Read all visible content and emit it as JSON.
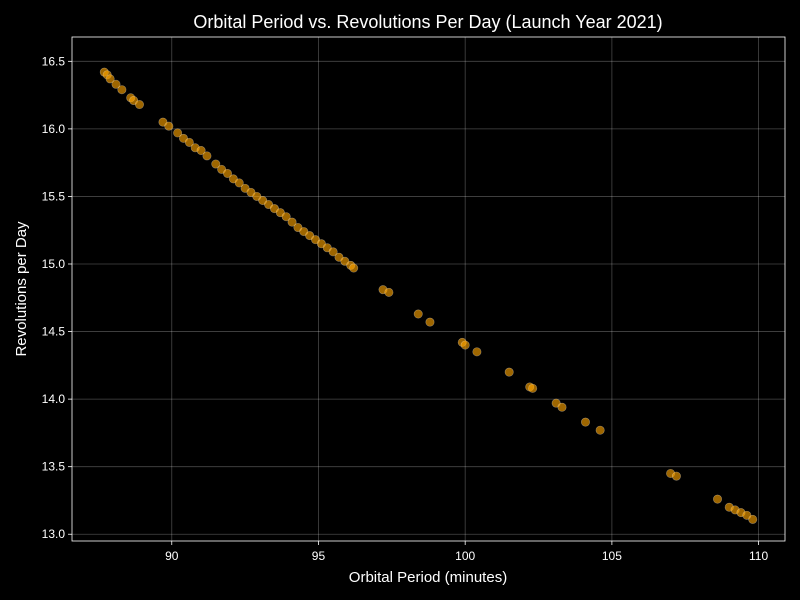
{
  "chart_data": {
    "type": "scatter",
    "title": "Orbital Period vs. Revolutions Per Day (Launch Year 2021)",
    "xlabel": "Orbital Period (minutes)",
    "ylabel": "Revolutions per Day",
    "xlim": [
      86.6,
      110.9
    ],
    "ylim": [
      12.95,
      16.68
    ],
    "xticks": [
      90,
      95,
      100,
      105,
      110
    ],
    "yticks": [
      13.0,
      13.5,
      14.0,
      14.5,
      15.0,
      15.5,
      16.0,
      16.5
    ],
    "xtick_labels": [
      "90",
      "95",
      "100",
      "105",
      "110"
    ],
    "ytick_labels": [
      "13.0",
      "13.5",
      "14.0",
      "14.5",
      "15.0",
      "15.5",
      "16.0",
      "16.5"
    ],
    "grid": true,
    "marker_color": "#FFA500",
    "marker_edge_color": "#ffffff",
    "background_color": "#000000",
    "x": [
      87.7,
      87.8,
      87.9,
      88.1,
      88.3,
      88.6,
      88.7,
      88.9,
      89.7,
      89.9,
      90.2,
      90.4,
      90.6,
      90.8,
      91.0,
      91.2,
      91.5,
      91.7,
      91.9,
      92.1,
      92.3,
      92.5,
      92.7,
      92.9,
      93.1,
      93.3,
      93.5,
      93.7,
      93.9,
      94.1,
      94.3,
      94.5,
      94.7,
      94.9,
      95.1,
      95.3,
      95.5,
      95.7,
      95.9,
      96.1,
      96.2,
      97.2,
      97.4,
      98.4,
      98.8,
      99.9,
      100.0,
      100.4,
      101.5,
      102.2,
      102.3,
      103.1,
      103.3,
      104.1,
      104.6,
      107.0,
      107.2,
      108.6,
      109.0,
      109.2,
      109.4,
      109.6,
      109.8
    ],
    "y": [
      16.42,
      16.4,
      16.37,
      16.33,
      16.29,
      16.23,
      16.21,
      16.18,
      16.05,
      16.02,
      15.97,
      15.93,
      15.9,
      15.86,
      15.84,
      15.8,
      15.74,
      15.7,
      15.67,
      15.63,
      15.6,
      15.56,
      15.53,
      15.5,
      15.47,
      15.44,
      15.41,
      15.38,
      15.35,
      15.31,
      15.27,
      15.24,
      15.21,
      15.18,
      15.15,
      15.12,
      15.09,
      15.05,
      15.02,
      14.99,
      14.97,
      14.81,
      14.79,
      14.63,
      14.57,
      14.42,
      14.4,
      14.35,
      14.2,
      14.09,
      14.08,
      13.97,
      13.94,
      13.83,
      13.77,
      13.45,
      13.43,
      13.26,
      13.2,
      13.18,
      13.16,
      13.14,
      13.11
    ]
  }
}
